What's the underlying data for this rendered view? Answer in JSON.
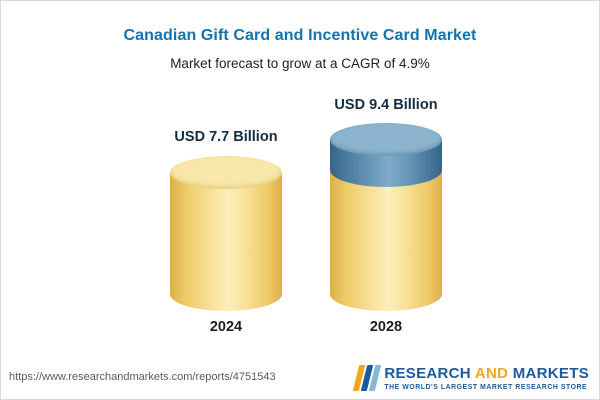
{
  "header": {
    "title": "Canadian Gift Card and Incentive Card Market",
    "subtitle": "Market forecast to grow at a CAGR of 4.9%"
  },
  "chart_data": {
    "type": "bar",
    "title": "Canadian Gift Card and Incentive Card Market",
    "subtitle": "Market forecast to grow at a CAGR of 4.9%",
    "categories": [
      "2024",
      "2028"
    ],
    "values": [
      7.7,
      9.4
    ],
    "unit": "USD Billion",
    "value_labels": [
      "USD 7.7 Billion",
      "USD 9.4 Billion"
    ],
    "cagr_percent": 4.9,
    "ylim": [
      0,
      10
    ],
    "grid": false,
    "legend_position": "none",
    "bar_colors": {
      "base_segment": "#f5d57a",
      "growth_segment": "#5a8bb0"
    }
  },
  "footer": {
    "url": "https://www.researchandmarkets.com/reports/4751543",
    "logo": {
      "word1": "RESEARCH",
      "word2": "AND",
      "word3": "MARKETS",
      "tagline": "THE WORLD'S LARGEST MARKET RESEARCH STORE"
    }
  }
}
